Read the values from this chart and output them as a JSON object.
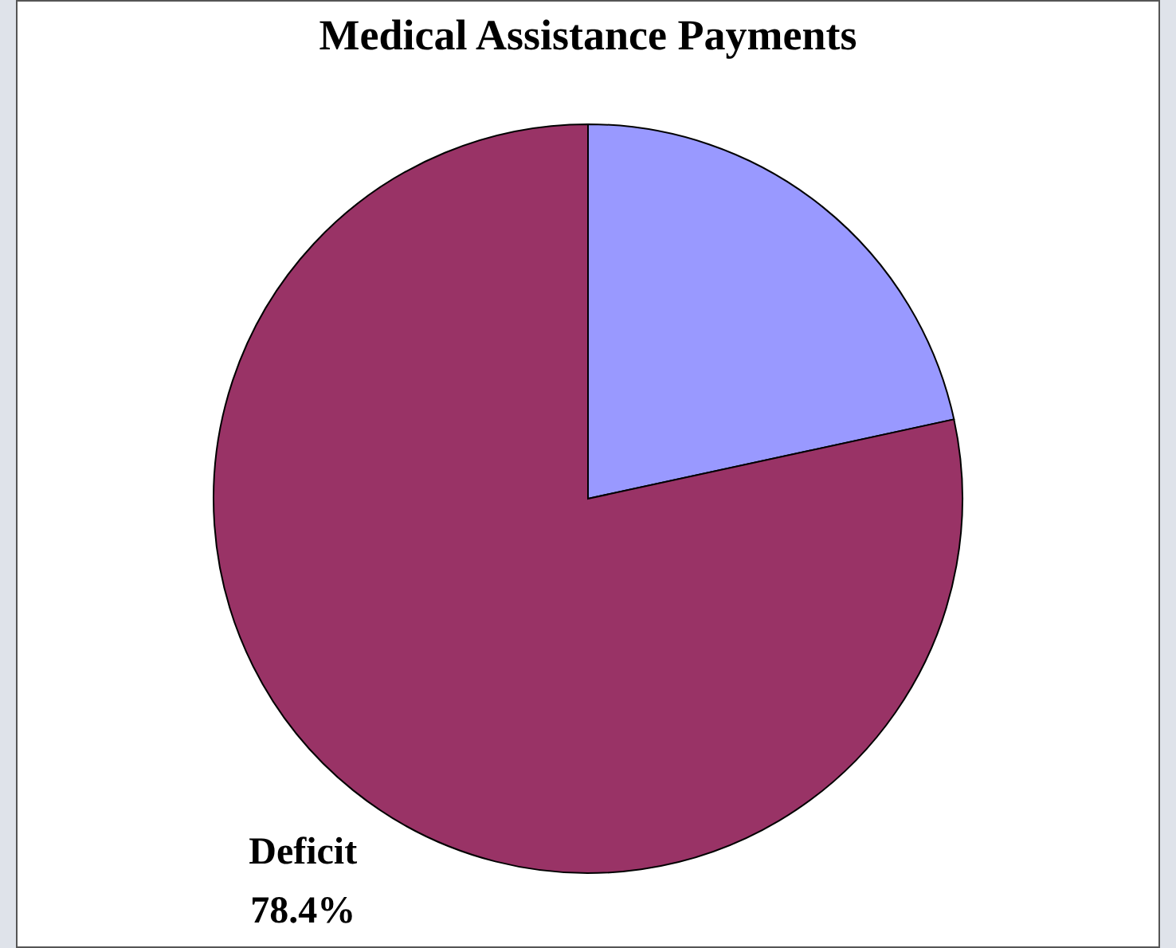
{
  "chart_data": {
    "type": "pie",
    "title": "Medical Assistance Payments",
    "categories": [
      null,
      "Deficit"
    ],
    "values": [
      21.6,
      78.4
    ],
    "colors": [
      "#9999ff",
      "#993366"
    ],
    "value_labels": [
      null,
      "78.4%"
    ]
  }
}
